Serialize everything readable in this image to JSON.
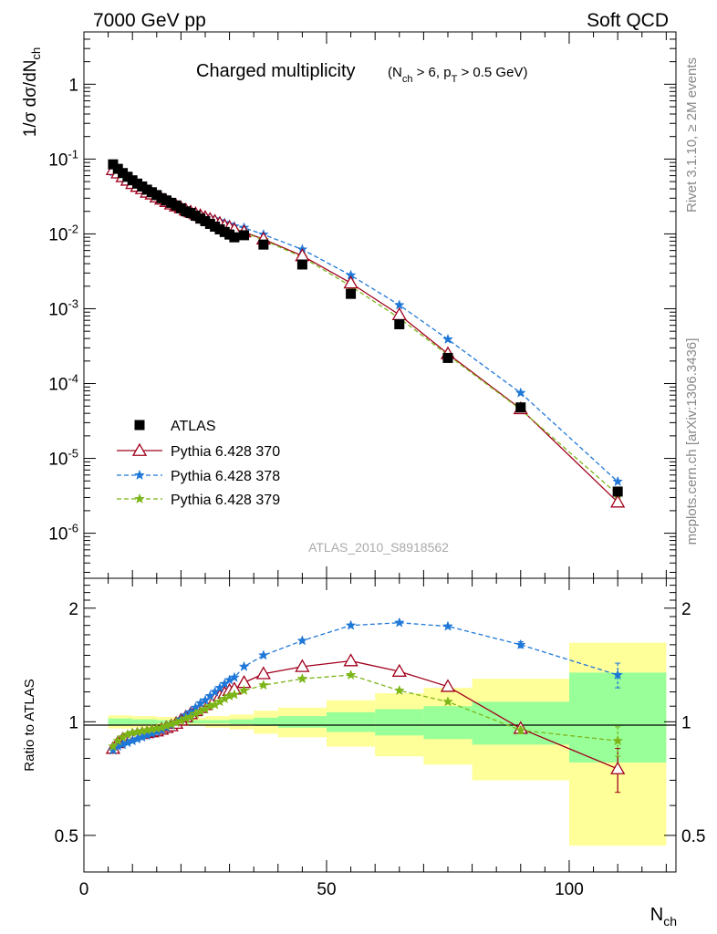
{
  "header": {
    "left": "7000 GeV pp",
    "right": "Soft QCD"
  },
  "side_labels": {
    "rivet": "Rivet 3.1.10, ≥ 2M events",
    "mcplots": "mcplots.cern.ch [arXiv:1306.3436]"
  },
  "watermark": "ATLAS_2010_S8918562",
  "colors": {
    "data": "#000000",
    "p370": "#a0001c",
    "p378": "#1f78d8",
    "p379": "#7cb518",
    "band_stat": "#99ff99",
    "band_total": "#ffff99"
  },
  "chart_data": [
    {
      "type": "scatter",
      "panel": "main",
      "title_main": "Charged multiplicity",
      "title_cuts": "(N_ch > 6, p_T > 0.5 GeV)",
      "ylabel": "1/σ dσ/dN_ch",
      "xlim": [
        0,
        122
      ],
      "ylim": [
        2.5e-07,
        5
      ],
      "yscale": "log",
      "yticks": [
        1e-06,
        1e-05,
        0.0001,
        0.001,
        0.01,
        0.1,
        1
      ],
      "ytick_labels": [
        "10^-6",
        "10^-5",
        "10^-4",
        "10^-3",
        "10^-2",
        "10^-1",
        "1"
      ],
      "legend_position": "bottom-left",
      "series": [
        {
          "name": "ATLAS",
          "marker": "square",
          "x": [
            6,
            7,
            8,
            9,
            10,
            11,
            12,
            13,
            14,
            15,
            16,
            17,
            18,
            19,
            20,
            21,
            22,
            23,
            24,
            25,
            26,
            27,
            28,
            29,
            30,
            31,
            33,
            37,
            45,
            55,
            65,
            75,
            90,
            110
          ],
          "y": [
            0.085,
            0.074,
            0.065,
            0.058,
            0.052,
            0.047,
            0.043,
            0.039,
            0.036,
            0.033,
            0.03,
            0.028,
            0.026,
            0.024,
            0.022,
            0.02,
            0.019,
            0.0175,
            0.016,
            0.0148,
            0.0136,
            0.0125,
            0.0115,
            0.0106,
            0.0098,
            0.009,
            0.0096,
            0.0072,
            0.0039,
            0.00158,
            0.00062,
            0.00022,
            4.8e-05,
            3.6e-06
          ]
        },
        {
          "name": "Pythia 6.428 370",
          "marker": "triangle",
          "x": [
            6,
            7,
            8,
            9,
            10,
            11,
            12,
            13,
            14,
            15,
            16,
            17,
            18,
            19,
            20,
            21,
            22,
            23,
            24,
            25,
            26,
            27,
            28,
            29,
            30,
            31,
            33,
            37,
            45,
            55,
            65,
            75,
            90,
            110
          ],
          "y": [
            0.072,
            0.065,
            0.058,
            0.052,
            0.047,
            0.043,
            0.04,
            0.036,
            0.034,
            0.031,
            0.029,
            0.027,
            0.025,
            0.0235,
            0.0222,
            0.0208,
            0.0196,
            0.0186,
            0.0175,
            0.0166,
            0.0156,
            0.0147,
            0.0138,
            0.0128,
            0.0122,
            0.0114,
            0.0106,
            0.0085,
            0.0051,
            0.0022,
            0.00083,
            0.00025,
            4.6e-05,
            2.6e-06
          ]
        },
        {
          "name": "Pythia 6.428 378",
          "marker": "star",
          "x": [
            6,
            7,
            8,
            9,
            10,
            11,
            12,
            13,
            14,
            15,
            16,
            17,
            18,
            19,
            20,
            21,
            22,
            23,
            24,
            25,
            26,
            27,
            28,
            29,
            30,
            31,
            33,
            37,
            45,
            55,
            65,
            75,
            90,
            110
          ],
          "y": [
            0.067,
            0.062,
            0.056,
            0.051,
            0.046,
            0.043,
            0.04,
            0.036,
            0.034,
            0.031,
            0.029,
            0.027,
            0.0255,
            0.0238,
            0.0225,
            0.0212,
            0.0202,
            0.0192,
            0.0182,
            0.0173,
            0.0165,
            0.0157,
            0.0148,
            0.014,
            0.0133,
            0.0126,
            0.0121,
            0.0098,
            0.0062,
            0.0028,
            0.00112,
            0.00039,
            7.5e-05,
            4.9e-06
          ]
        },
        {
          "name": "Pythia 6.428 379",
          "marker": "star",
          "x": [
            6,
            7,
            8,
            9,
            10,
            11,
            12,
            13,
            14,
            15,
            16,
            17,
            18,
            19,
            20,
            21,
            22,
            23,
            24,
            25,
            26,
            27,
            28,
            29,
            30,
            31,
            33,
            37,
            45,
            55,
            65,
            75,
            90,
            110
          ],
          "y": [
            0.074,
            0.067,
            0.06,
            0.054,
            0.049,
            0.044,
            0.041,
            0.037,
            0.034,
            0.031,
            0.029,
            0.027,
            0.025,
            0.0234,
            0.022,
            0.0206,
            0.0193,
            0.0182,
            0.0171,
            0.0162,
            0.0152,
            0.0143,
            0.0134,
            0.0125,
            0.0118,
            0.0111,
            0.0104,
            0.0083,
            0.0049,
            0.002,
            0.00075,
            0.00024,
            4.5e-05,
            3.3e-06
          ]
        }
      ]
    },
    {
      "type": "line",
      "panel": "ratio",
      "xlabel": "N_ch",
      "ylabel": "Ratio to ATLAS",
      "xlim": [
        0,
        122
      ],
      "ylim": [
        0.4,
        2.4
      ],
      "xticks": [
        0,
        50,
        100
      ],
      "xtick_labels": [
        "0",
        "50",
        "100"
      ],
      "yticks": [
        0.5,
        1,
        2
      ],
      "ytick_labels": [
        "0.5",
        "1",
        "2"
      ],
      "bands": {
        "edges": [
          5,
          10,
          15,
          20,
          25,
          30,
          35,
          40,
          50,
          60,
          70,
          80,
          100,
          120
        ],
        "stat_lo": [
          0.98,
          0.985,
          0.99,
          0.99,
          0.99,
          0.985,
          0.975,
          0.965,
          0.94,
          0.92,
          0.9,
          0.87,
          0.78
        ],
        "stat_hi": [
          1.02,
          1.015,
          1.01,
          1.01,
          1.01,
          1.015,
          1.025,
          1.035,
          1.06,
          1.08,
          1.1,
          1.13,
          1.35
        ],
        "total_lo": [
          0.96,
          0.965,
          0.97,
          0.975,
          0.965,
          0.955,
          0.93,
          0.91,
          0.86,
          0.81,
          0.77,
          0.7,
          0.47
        ],
        "total_hi": [
          1.04,
          1.035,
          1.03,
          1.025,
          1.035,
          1.045,
          1.07,
          1.09,
          1.14,
          1.19,
          1.23,
          1.3,
          1.62
        ]
      },
      "series": [
        {
          "name": "Pythia 6.428 370",
          "marker": "triangle",
          "x": [
            6,
            7,
            8,
            9,
            10,
            11,
            12,
            13,
            14,
            15,
            16,
            17,
            18,
            19,
            20,
            21,
            22,
            23,
            24,
            25,
            26,
            27,
            28,
            29,
            30,
            31,
            33,
            37,
            45,
            55,
            65,
            75,
            90,
            110
          ],
          "y": [
            0.85,
            0.88,
            0.9,
            0.91,
            0.92,
            0.925,
            0.93,
            0.935,
            0.94,
            0.945,
            0.955,
            0.965,
            0.975,
            0.99,
            1.01,
            1.03,
            1.05,
            1.07,
            1.09,
            1.11,
            1.13,
            1.15,
            1.17,
            1.19,
            1.21,
            1.22,
            1.27,
            1.34,
            1.4,
            1.45,
            1.36,
            1.24,
            0.96,
            0.75
          ],
          "err": [
            0,
            0,
            0,
            0,
            0,
            0,
            0,
            0,
            0,
            0,
            0,
            0,
            0,
            0,
            0,
            0,
            0,
            0,
            0,
            0,
            0,
            0,
            0,
            0,
            0,
            0,
            0,
            0,
            0,
            0,
            0,
            0,
            0.02,
            0.1
          ]
        },
        {
          "name": "Pythia 6.428 378",
          "marker": "star",
          "x": [
            6,
            7,
            8,
            9,
            10,
            11,
            12,
            13,
            14,
            15,
            16,
            17,
            18,
            19,
            20,
            21,
            22,
            23,
            24,
            25,
            26,
            27,
            28,
            29,
            30,
            31,
            33,
            37,
            45,
            55,
            65,
            75,
            90,
            110
          ],
          "y": [
            0.84,
            0.86,
            0.87,
            0.88,
            0.89,
            0.9,
            0.91,
            0.92,
            0.93,
            0.94,
            0.95,
            0.965,
            0.98,
            0.995,
            1.015,
            1.04,
            1.06,
            1.09,
            1.12,
            1.14,
            1.17,
            1.2,
            1.23,
            1.26,
            1.29,
            1.31,
            1.4,
            1.5,
            1.64,
            1.8,
            1.83,
            1.79,
            1.6,
            1.33
          ],
          "err": [
            0,
            0,
            0,
            0,
            0,
            0,
            0,
            0,
            0,
            0,
            0,
            0,
            0,
            0,
            0,
            0,
            0,
            0,
            0,
            0,
            0,
            0,
            0,
            0,
            0,
            0,
            0,
            0,
            0,
            0,
            0,
            0,
            0.03,
            0.1
          ]
        },
        {
          "name": "Pythia 6.428 379",
          "marker": "star",
          "x": [
            6,
            7,
            8,
            9,
            10,
            11,
            12,
            13,
            14,
            15,
            16,
            17,
            18,
            19,
            20,
            21,
            22,
            23,
            24,
            25,
            26,
            27,
            28,
            29,
            30,
            31,
            33,
            37,
            45,
            55,
            65,
            75,
            90,
            110
          ],
          "y": [
            0.86,
            0.89,
            0.91,
            0.925,
            0.935,
            0.94,
            0.945,
            0.95,
            0.955,
            0.96,
            0.965,
            0.975,
            0.985,
            0.995,
            1.005,
            1.02,
            1.03,
            1.05,
            1.065,
            1.08,
            1.1,
            1.11,
            1.13,
            1.15,
            1.17,
            1.18,
            1.21,
            1.25,
            1.3,
            1.33,
            1.21,
            1.13,
            0.95,
            0.89
          ],
          "err": [
            0,
            0,
            0,
            0,
            0,
            0,
            0,
            0,
            0,
            0,
            0,
            0,
            0,
            0,
            0,
            0,
            0,
            0,
            0,
            0,
            0,
            0,
            0,
            0,
            0,
            0,
            0,
            0,
            0,
            0,
            0,
            0,
            0.02,
            0.08
          ]
        }
      ]
    }
  ]
}
